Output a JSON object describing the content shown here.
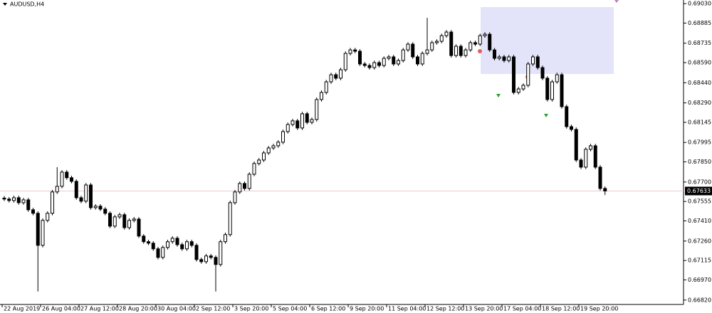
{
  "chart_data": {
    "type": "candlestick",
    "title": "AUDUSD,H4",
    "categories": [
      "22 Aug 2019",
      null,
      null,
      null,
      null,
      null,
      null,
      null,
      "26 Aug 04:00",
      null,
      null,
      null,
      null,
      null,
      null,
      null,
      "27 Aug 12:00",
      null,
      null,
      null,
      null,
      null,
      null,
      null,
      "28 Aug 20:00",
      null,
      null,
      null,
      null,
      null,
      null,
      null,
      "30 Aug 04:00",
      null,
      null,
      null,
      null,
      null,
      null,
      null,
      "2 Sep 12:00",
      null,
      null,
      null,
      null,
      null,
      null,
      null,
      "3 Sep 20:00",
      null,
      null,
      null,
      null,
      null,
      null,
      null,
      "5 Sep 04:00",
      null,
      null,
      null,
      null,
      null,
      null,
      null,
      "6 Sep 12:00",
      null,
      null,
      null,
      null,
      null,
      null,
      null,
      "9 Sep 20:00",
      null,
      null,
      null,
      null,
      null,
      null,
      null,
      "11 Sep 04:00",
      null,
      null,
      null,
      null,
      null,
      null,
      null,
      "12 Sep 12:00",
      null,
      null,
      null,
      null,
      null,
      null,
      null,
      "13 Sep 20:00",
      null,
      null,
      null,
      null,
      null,
      null,
      null,
      "17 Sep 04:00",
      null,
      null,
      null,
      null,
      null,
      null,
      null,
      "18 Sep 12:00",
      null,
      null,
      null,
      null,
      null,
      null,
      null,
      "19 Sep 20:00",
      null,
      null,
      null,
      null,
      null
    ],
    "open": [
      0.6758,
      0.67573,
      0.67562,
      0.67583,
      0.67546,
      0.67567,
      0.67493,
      0.67467,
      0.67228,
      0.67414,
      0.67467,
      0.67626,
      0.67668,
      0.67774,
      0.67732,
      0.67705,
      0.67583,
      0.67557,
      0.67678,
      0.67509,
      0.6752,
      0.67498,
      0.67467,
      0.67371,
      0.6744,
      0.67456,
      0.6736,
      0.67414,
      0.67424,
      0.67297,
      0.67255,
      0.67244,
      0.67202,
      0.67138,
      0.67212,
      0.67255,
      0.67281,
      0.67233,
      0.67202,
      0.67255,
      0.67228,
      0.67122,
      0.67106,
      0.67149,
      0.67138,
      0.67085,
      0.67255,
      0.67308,
      0.67546,
      0.67626,
      0.67689,
      0.67652,
      0.67758,
      0.67838,
      0.67864,
      0.67917,
      0.67954,
      0.6797,
      0.67997,
      0.68076,
      0.68129,
      0.68156,
      0.68103,
      0.68209,
      0.68145,
      0.68166,
      0.68315,
      0.68368,
      0.68447,
      0.685,
      0.68474,
      0.68537,
      0.68659,
      0.68685,
      0.68675,
      0.6858,
      0.68569,
      0.68553,
      0.6859,
      0.68569,
      0.68622,
      0.68633,
      0.6858,
      0.68606,
      0.68685,
      0.68728,
      0.68633,
      0.6858,
      0.68659,
      0.68685,
      0.68739,
      0.68749,
      0.68791,
      0.68818,
      0.68643,
      0.68712,
      0.68643,
      0.68685,
      0.68739,
      0.68728,
      0.68791,
      0.68802,
      0.68685,
      0.68622,
      0.68633,
      0.68606,
      0.68633,
      0.68368,
      0.68394,
      0.68421,
      0.6858,
      0.68633,
      0.68553,
      0.68474,
      0.68315,
      0.68447,
      0.685,
      0.68262,
      0.68113,
      0.68092,
      0.67864,
      0.67811,
      0.67944,
      0.6797,
      0.67811,
      0.67652
    ],
    "high": [
      0.67595,
      0.67588,
      0.67598,
      0.67598,
      0.67582,
      0.67582,
      0.67508,
      0.67482,
      0.67429,
      0.67482,
      0.67641,
      0.67811,
      0.67789,
      0.67789,
      0.67747,
      0.6772,
      0.67598,
      0.67693,
      0.67693,
      0.67535,
      0.67535,
      0.67513,
      0.67482,
      0.67455,
      0.67471,
      0.67471,
      0.67429,
      0.67439,
      0.67439,
      0.67312,
      0.6727,
      0.67259,
      0.67217,
      0.67227,
      0.6727,
      0.67296,
      0.67296,
      0.67248,
      0.6727,
      0.6727,
      0.67243,
      0.67137,
      0.67164,
      0.67164,
      0.67153,
      0.6727,
      0.67323,
      0.67561,
      0.67641,
      0.67704,
      0.67704,
      0.67773,
      0.67853,
      0.67879,
      0.67932,
      0.67969,
      0.67985,
      0.68012,
      0.68091,
      0.68144,
      0.68171,
      0.68171,
      0.68224,
      0.68224,
      0.68181,
      0.6833,
      0.68383,
      0.68462,
      0.68515,
      0.68515,
      0.68552,
      0.68674,
      0.687,
      0.687,
      0.6869,
      0.68595,
      0.68584,
      0.68605,
      0.68605,
      0.68637,
      0.68648,
      0.68648,
      0.68621,
      0.687,
      0.68743,
      0.68743,
      0.68648,
      0.68674,
      0.68924,
      0.68754,
      0.68764,
      0.68806,
      0.68833,
      0.68833,
      0.68727,
      0.68727,
      0.687,
      0.68754,
      0.68754,
      0.68806,
      0.68817,
      0.68817,
      0.687,
      0.68648,
      0.68648,
      0.68648,
      0.68648,
      0.68409,
      0.68436,
      0.68595,
      0.68648,
      0.68648,
      0.68568,
      0.68489,
      0.68462,
      0.68515,
      0.68515,
      0.68277,
      0.68128,
      0.68107,
      0.67879,
      0.67959,
      0.67985,
      0.67985,
      0.67826,
      0.67667
    ],
    "low": [
      0.67558,
      0.67547,
      0.67547,
      0.67531,
      0.67531,
      0.67478,
      0.67452,
      0.66884,
      0.67213,
      0.67399,
      0.67452,
      0.67611,
      0.67653,
      0.67717,
      0.6769,
      0.67568,
      0.67542,
      0.67542,
      0.67494,
      0.67494,
      0.67483,
      0.67452,
      0.67356,
      0.67356,
      0.67425,
      0.67345,
      0.67345,
      0.67399,
      0.67282,
      0.6724,
      0.67229,
      0.67187,
      0.67123,
      0.67123,
      0.67197,
      0.6724,
      0.67218,
      0.67187,
      0.67187,
      0.67213,
      0.67107,
      0.67091,
      0.67091,
      0.67123,
      0.66884,
      0.6707,
      0.6724,
      0.67293,
      0.67531,
      0.67611,
      0.67637,
      0.67637,
      0.67743,
      0.67823,
      0.67849,
      0.67902,
      0.67939,
      0.67955,
      0.67982,
      0.68061,
      0.68114,
      0.68088,
      0.68088,
      0.6813,
      0.6813,
      0.68151,
      0.683,
      0.68353,
      0.68432,
      0.68459,
      0.68459,
      0.68522,
      0.68644,
      0.6866,
      0.68565,
      0.68554,
      0.68538,
      0.68538,
      0.68554,
      0.68554,
      0.68607,
      0.68565,
      0.68565,
      0.68591,
      0.6867,
      0.68618,
      0.68565,
      0.68565,
      0.68644,
      0.6867,
      0.68724,
      0.68734,
      0.68776,
      0.68628,
      0.68628,
      0.68628,
      0.68628,
      0.6867,
      0.68713,
      0.68713,
      0.68776,
      0.6867,
      0.68607,
      0.68607,
      0.68591,
      0.68591,
      0.68353,
      0.68353,
      0.68379,
      0.68406,
      0.68565,
      0.68538,
      0.68459,
      0.683,
      0.683,
      0.68432,
      0.68247,
      0.68098,
      0.68077,
      0.67849,
      0.67796,
      0.67796,
      0.67929,
      0.67796,
      0.67637,
      0.67603
    ],
    "close": [
      0.67573,
      0.67562,
      0.67583,
      0.67546,
      0.67567,
      0.67493,
      0.67467,
      0.67228,
      0.67414,
      0.67467,
      0.67626,
      0.67668,
      0.67774,
      0.67732,
      0.67705,
      0.67583,
      0.67557,
      0.67678,
      0.67509,
      0.6752,
      0.67498,
      0.67467,
      0.67371,
      0.6744,
      0.67456,
      0.6736,
      0.67414,
      0.67424,
      0.67297,
      0.67255,
      0.67244,
      0.67202,
      0.67138,
      0.67212,
      0.67255,
      0.67281,
      0.67233,
      0.67202,
      0.67255,
      0.67228,
      0.67122,
      0.67106,
      0.67149,
      0.67138,
      0.67085,
      0.67255,
      0.67308,
      0.67546,
      0.67626,
      0.67689,
      0.67652,
      0.67758,
      0.67838,
      0.67864,
      0.67917,
      0.67954,
      0.6797,
      0.67997,
      0.68076,
      0.68129,
      0.68156,
      0.68103,
      0.68209,
      0.68145,
      0.68166,
      0.68315,
      0.68368,
      0.68447,
      0.685,
      0.68474,
      0.68537,
      0.68659,
      0.68685,
      0.68675,
      0.6858,
      0.68569,
      0.68553,
      0.6859,
      0.68569,
      0.68622,
      0.68633,
      0.6858,
      0.68606,
      0.68685,
      0.68728,
      0.68633,
      0.6858,
      0.68659,
      0.68685,
      0.68739,
      0.68749,
      0.68791,
      0.68818,
      0.68643,
      0.68712,
      0.68643,
      0.68685,
      0.68739,
      0.68728,
      0.68791,
      0.68802,
      0.68685,
      0.68622,
      0.68633,
      0.68606,
      0.68633,
      0.68368,
      0.68394,
      0.68421,
      0.6858,
      0.68633,
      0.68553,
      0.68474,
      0.68315,
      0.68447,
      0.685,
      0.68262,
      0.68113,
      0.68092,
      0.67864,
      0.67811,
      0.67944,
      0.6797,
      0.67811,
      0.67652,
      0.67633
    ],
    "up_color": "#ffffff",
    "down_color": "#000000",
    "wick_color": "#000000",
    "current_price": 0.67633,
    "current_price_color": "#e8c8cc",
    "ylim": [
      0.66803,
      0.69057
    ],
    "yticks": [
      {
        "value": 0.6903,
        "label": "0.69030"
      },
      0.68885,
      0.68735,
      {
        "value": 0.6859,
        "label": "0.68590"
      },
      {
        "value": 0.6844,
        "label": "0.68440"
      },
      {
        "value": 0.6829,
        "label": "0.68290"
      },
      0.68145,
      0.67995,
      {
        "value": 0.6785,
        "label": "0.67850"
      },
      {
        "value": 0.677,
        "label": "0.67700"
      },
      0.67555,
      {
        "value": 0.6741,
        "label": "0.67410"
      },
      {
        "value": 0.6726,
        "label": "0.67260"
      },
      0.67115,
      {
        "value": 0.6697,
        "label": "0.66970"
      },
      {
        "value": 0.6682,
        "label": "0.66820"
      }
    ],
    "grid": false
  }
}
